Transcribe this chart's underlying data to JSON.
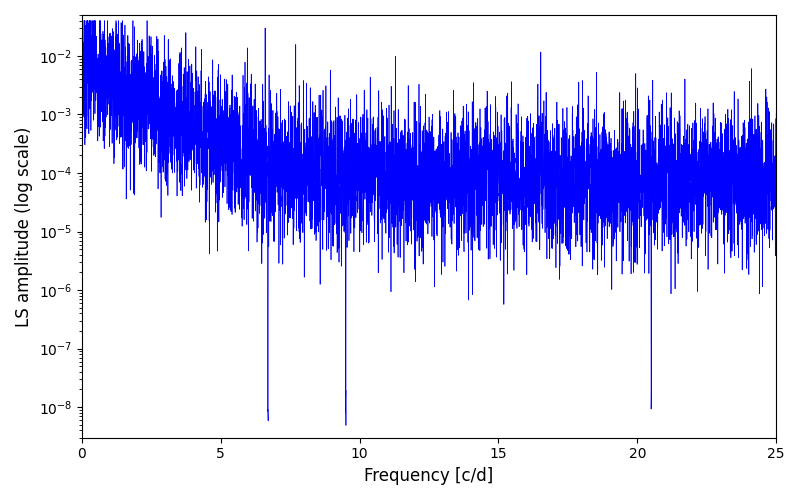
{
  "title": "",
  "xlabel": "Frequency [c/d]",
  "ylabel": "LS amplitude (log scale)",
  "xlim": [
    0,
    25
  ],
  "ylim": [
    3e-09,
    0.05
  ],
  "yscale": "log",
  "line_color": "#0000FF",
  "line_width": 0.5,
  "n_points": 6000,
  "freq_max": 25.0,
  "seed": 7,
  "background_color": "#ffffff",
  "figsize": [
    8.0,
    5.0
  ],
  "dpi": 100
}
